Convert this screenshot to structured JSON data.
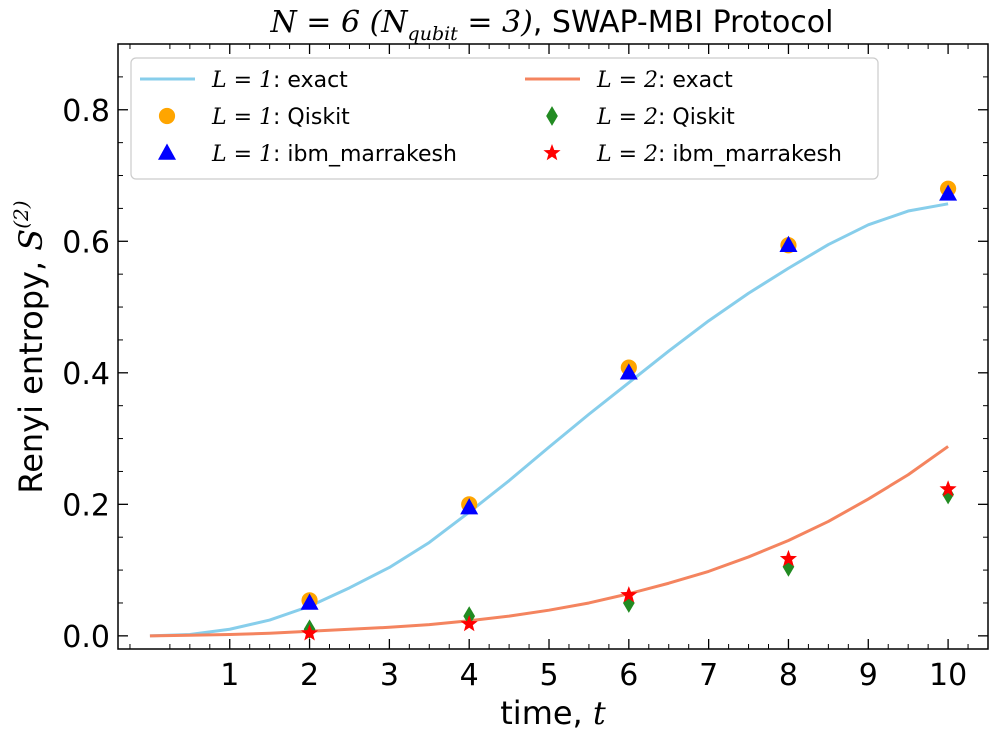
{
  "chart_data": {
    "type": "line",
    "title": {
      "math": "N = 6 (N_qubit = 3)",
      "main": "N = 6 (N",
      "sub": "qubit",
      "tail": " = 3)",
      "text": ", SWAP-MBI Protocol"
    },
    "xlabel": {
      "text": "time, ",
      "var": "t"
    },
    "ylabel": {
      "text": "Renyi entropy, ",
      "var": "S",
      "sup": "(2)"
    },
    "xlim": [
      -0.4,
      10.5
    ],
    "ylim": [
      -0.02,
      0.9
    ],
    "xticks": [
      1,
      2,
      3,
      4,
      5,
      6,
      7,
      8,
      9,
      10
    ],
    "xtick_labels": [
      "1",
      "2",
      "3",
      "4",
      "5",
      "6",
      "7",
      "8",
      "9",
      "10"
    ],
    "yticks": [
      0.0,
      0.2,
      0.4,
      0.6,
      0.8
    ],
    "ytick_labels": [
      "0.0",
      "0.2",
      "0.4",
      "0.6",
      "0.8"
    ],
    "legend_position": "top",
    "lines": [
      {
        "name": "L = 1: exact",
        "color": "#87ceeb",
        "x": [
          0,
          0.5,
          1,
          1.5,
          2,
          2.5,
          3,
          3.5,
          4,
          4.5,
          5,
          5.5,
          6,
          6.5,
          7,
          7.5,
          8,
          8.5,
          9,
          9.5,
          10
        ],
        "y": [
          0.0,
          0.002,
          0.01,
          0.024,
          0.045,
          0.073,
          0.104,
          0.142,
          0.188,
          0.236,
          0.287,
          0.337,
          0.385,
          0.433,
          0.479,
          0.521,
          0.559,
          0.595,
          0.625,
          0.646,
          0.657
        ]
      },
      {
        "name": "L = 2: exact",
        "color": "#f4845f",
        "x": [
          0,
          0.5,
          1,
          1.5,
          2,
          2.5,
          3,
          3.5,
          4,
          4.5,
          5,
          5.5,
          6,
          6.5,
          7,
          7.5,
          8,
          8.5,
          9,
          9.5,
          10
        ],
        "y": [
          0.0,
          0.001,
          0.002,
          0.004,
          0.007,
          0.01,
          0.013,
          0.017,
          0.023,
          0.03,
          0.039,
          0.05,
          0.064,
          0.08,
          0.098,
          0.12,
          0.145,
          0.174,
          0.208,
          0.245,
          0.288
        ]
      }
    ],
    "scatter": [
      {
        "name": "L = 1: Qiskit",
        "marker": "circle",
        "color": "#ffa500",
        "x": [
          2,
          4,
          6,
          8,
          10
        ],
        "y": [
          0.054,
          0.2,
          0.408,
          0.594,
          0.68
        ]
      },
      {
        "name": "L = 1: ibm_marrakesh",
        "marker": "triangle",
        "color": "#0000ff",
        "x": [
          2,
          4,
          6,
          8,
          10
        ],
        "y": [
          0.05,
          0.195,
          0.4,
          0.594,
          0.672
        ]
      },
      {
        "name": "L = 2: Qiskit",
        "marker": "diamond",
        "color": "#228b22",
        "x": [
          2,
          4,
          6,
          8,
          10
        ],
        "y": [
          0.01,
          0.03,
          0.05,
          0.105,
          0.215
        ]
      },
      {
        "name": "L = 2: ibm_marrakesh",
        "marker": "star",
        "color": "#ff0000",
        "x": [
          2,
          4,
          6,
          8,
          10
        ],
        "y": [
          0.004,
          0.018,
          0.062,
          0.117,
          0.223
        ]
      }
    ],
    "legend": [
      {
        "label_math": "L = 1",
        "label_text": ": exact",
        "kind": "line",
        "ref": "lines.0"
      },
      {
        "label_math": "L = 2",
        "label_text": ": exact",
        "kind": "line",
        "ref": "lines.1"
      },
      {
        "label_math": "L = 1",
        "label_text": ": Qiskit",
        "kind": "marker",
        "ref": "scatter.0"
      },
      {
        "label_math": "L = 2",
        "label_text": ": Qiskit",
        "kind": "marker",
        "ref": "scatter.2"
      },
      {
        "label_math": "L = 1",
        "label_text": ": ibm_marrakesh",
        "kind": "marker",
        "ref": "scatter.1"
      },
      {
        "label_math": "L = 2",
        "label_text": ": ibm_marrakesh",
        "kind": "marker",
        "ref": "scatter.3"
      }
    ]
  }
}
